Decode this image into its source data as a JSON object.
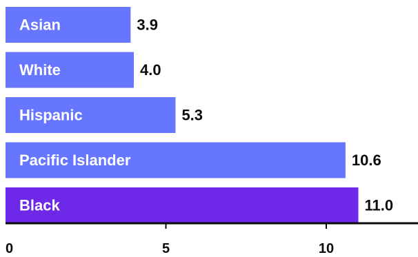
{
  "chart_data": {
    "type": "bar",
    "orientation": "horizontal",
    "categories": [
      "Asian",
      "White",
      "Hispanic",
      "Pacific Islander",
      "Black"
    ],
    "values": [
      3.9,
      4.0,
      5.3,
      10.6,
      11.0
    ],
    "value_labels": [
      "3.9",
      "4.0",
      "5.3",
      "10.6",
      "11.0"
    ],
    "bar_colors": [
      "#6776ff",
      "#6776ff",
      "#6776ff",
      "#6776ff",
      "#6d28e8"
    ],
    "xlim": [
      0,
      13
    ],
    "xticks": [
      0,
      5,
      10
    ],
    "xtick_labels": [
      "0",
      "5",
      "10"
    ],
    "title": "",
    "xlabel": "",
    "ylabel": "",
    "grid": false,
    "legend": "none"
  }
}
